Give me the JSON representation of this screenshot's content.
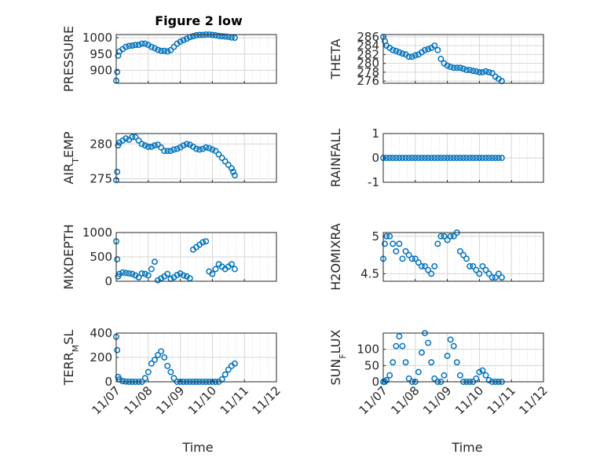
{
  "figure": {
    "title": "Figure 2 low",
    "x_axis_label": "Time",
    "x_tick_labels": [
      "11/07",
      "11/08",
      "11/09",
      "11/10",
      "11/11",
      "11/12"
    ],
    "marker_color": "#0072bd",
    "grid_color": "#d6d6d6",
    "axis_color": "#262626"
  },
  "chart_data": [
    {
      "type": "scatter",
      "title": "Figure 2 low",
      "ylabel": "PRESSURE",
      "xlabel": "",
      "xlim": [
        0,
        5
      ],
      "ylim": [
        860,
        1010
      ],
      "yticks": [
        900,
        950,
        1000
      ],
      "grid": true,
      "x": [
        0,
        0.03,
        0.06,
        0.1,
        0.2,
        0.3,
        0.4,
        0.5,
        0.6,
        0.7,
        0.8,
        0.9,
        1,
        1.1,
        1.2,
        1.3,
        1.4,
        1.5,
        1.6,
        1.7,
        1.8,
        1.9,
        2,
        2.1,
        2.2,
        2.3,
        2.4,
        2.5,
        2.6,
        2.7,
        2.8,
        2.9,
        3,
        3.1,
        3.2,
        3.3,
        3.4,
        3.5,
        3.6,
        3.7
      ],
      "y": [
        868,
        895,
        945,
        958,
        965,
        972,
        975,
        976,
        978,
        978,
        982,
        982,
        978,
        972,
        968,
        963,
        960,
        960,
        958,
        962,
        972,
        982,
        988,
        993,
        997,
        1002,
        1005,
        1008,
        1009,
        1009,
        1010,
        1010,
        1009,
        1008,
        1006,
        1005,
        1004,
        1003,
        1001,
        1000
      ]
    },
    {
      "type": "scatter",
      "ylabel": "THETA",
      "xlabel": "",
      "xlim": [
        0,
        5
      ],
      "ylim": [
        275.5,
        286.5
      ],
      "yticks": [
        276,
        278,
        280,
        282,
        284,
        286
      ],
      "grid": true,
      "x": [
        0,
        0.05,
        0.1,
        0.2,
        0.3,
        0.4,
        0.5,
        0.6,
        0.7,
        0.8,
        0.9,
        1,
        1.1,
        1.2,
        1.3,
        1.4,
        1.5,
        1.6,
        1.7,
        1.8,
        1.9,
        2,
        2.1,
        2.2,
        2.3,
        2.4,
        2.5,
        2.6,
        2.7,
        2.8,
        2.9,
        3,
        3.1,
        3.2,
        3.3,
        3.4,
        3.5,
        3.6,
        3.7
      ],
      "y": [
        286,
        285,
        284,
        283.5,
        283,
        282.8,
        282.5,
        282.2,
        282,
        281.5,
        281.5,
        281.8,
        282,
        282.5,
        283,
        283.2,
        283.5,
        284,
        283,
        281,
        280,
        279.5,
        279.2,
        279,
        279,
        279,
        278.8,
        278.5,
        278.5,
        278.3,
        278.2,
        278,
        278,
        278.2,
        278,
        277.8,
        277,
        276.5,
        276
      ]
    },
    {
      "type": "scatter",
      "ylabel": "AIR_TEMP",
      "xlabel": "",
      "xlim": [
        0,
        5
      ],
      "ylim": [
        274.5,
        281.5
      ],
      "yticks": [
        275,
        280
      ],
      "grid": true,
      "x": [
        0,
        0.03,
        0.06,
        0.1,
        0.2,
        0.3,
        0.4,
        0.5,
        0.6,
        0.7,
        0.8,
        0.9,
        1,
        1.1,
        1.2,
        1.3,
        1.4,
        1.5,
        1.6,
        1.7,
        1.8,
        1.9,
        2,
        2.1,
        2.2,
        2.3,
        2.4,
        2.5,
        2.6,
        2.7,
        2.8,
        2.9,
        3,
        3.1,
        3.2,
        3.3,
        3.4,
        3.5,
        3.6,
        3.65,
        3.7
      ],
      "y": [
        274.8,
        276,
        279.8,
        280.2,
        280.5,
        280.8,
        280.6,
        281,
        281,
        280.5,
        280,
        279.8,
        279.6,
        279.6,
        279.8,
        279.9,
        279.5,
        279,
        279,
        279,
        279.2,
        279.3,
        279.5,
        279.8,
        280,
        279.9,
        279.6,
        279.3,
        279.2,
        279.3,
        279.5,
        279.4,
        279.2,
        279,
        278.5,
        278,
        277.5,
        277,
        276.5,
        276,
        275.5
      ]
    },
    {
      "type": "scatter",
      "ylabel": "RAINFALL",
      "xlabel": "",
      "xlim": [
        0,
        5
      ],
      "ylim": [
        -1,
        1
      ],
      "yticks": [
        -1,
        0,
        1
      ],
      "grid": true,
      "x": [
        0,
        0.1,
        0.2,
        0.3,
        0.4,
        0.5,
        0.6,
        0.7,
        0.8,
        0.9,
        1,
        1.1,
        1.2,
        1.3,
        1.4,
        1.5,
        1.6,
        1.7,
        1.8,
        1.9,
        2,
        2.1,
        2.2,
        2.3,
        2.4,
        2.5,
        2.6,
        2.7,
        2.8,
        2.9,
        3,
        3.1,
        3.2,
        3.3,
        3.4,
        3.5,
        3.6,
        3.7
      ],
      "y": [
        0,
        0,
        0,
        0,
        0,
        0,
        0,
        0,
        0,
        0,
        0,
        0,
        0,
        0,
        0,
        0,
        0,
        0,
        0,
        0,
        0,
        0,
        0,
        0,
        0,
        0,
        0,
        0,
        0,
        0,
        0,
        0,
        0,
        0,
        0,
        0,
        0,
        0
      ]
    },
    {
      "type": "scatter",
      "ylabel": "MIXDEPTH",
      "xlabel": "",
      "xlim": [
        0,
        5
      ],
      "ylim": [
        0,
        1000
      ],
      "yticks": [
        0,
        500,
        1000
      ],
      "grid": true,
      "x": [
        0,
        0.03,
        0.06,
        0.1,
        0.2,
        0.3,
        0.4,
        0.5,
        0.6,
        0.7,
        0.8,
        0.9,
        1,
        1.1,
        1.2,
        1.3,
        1.4,
        1.5,
        1.6,
        1.7,
        1.8,
        1.9,
        2,
        2.1,
        2.2,
        2.3,
        2.4,
        2.5,
        2.6,
        2.7,
        2.8,
        2.9,
        3,
        3.1,
        3.2,
        3.3,
        3.4,
        3.5,
        3.6,
        3.7
      ],
      "y": [
        820,
        450,
        100,
        150,
        180,
        170,
        160,
        150,
        120,
        80,
        160,
        150,
        120,
        250,
        400,
        20,
        60,
        100,
        150,
        50,
        80,
        130,
        160,
        120,
        100,
        60,
        650,
        700,
        750,
        800,
        820,
        200,
        150,
        250,
        350,
        300,
        250,
        300,
        350,
        250
      ]
    },
    {
      "type": "scatter",
      "ylabel": "H2OMIXRA",
      "xlabel": "",
      "xlim": [
        0,
        5
      ],
      "ylim": [
        4.4,
        5.05
      ],
      "yticks": [
        4.5,
        5
      ],
      "grid": true,
      "x": [
        0,
        0.05,
        0.1,
        0.2,
        0.3,
        0.4,
        0.5,
        0.6,
        0.7,
        0.8,
        0.9,
        1,
        1.1,
        1.2,
        1.3,
        1.4,
        1.5,
        1.6,
        1.7,
        1.8,
        1.9,
        2,
        2.1,
        2.2,
        2.3,
        2.4,
        2.5,
        2.6,
        2.7,
        2.8,
        2.9,
        3,
        3.1,
        3.2,
        3.3,
        3.4,
        3.5,
        3.6,
        3.7
      ],
      "y": [
        4.7,
        4.9,
        5,
        5,
        4.9,
        4.8,
        4.9,
        4.7,
        4.8,
        4.75,
        4.7,
        4.7,
        4.65,
        4.6,
        4.6,
        4.55,
        4.5,
        4.6,
        4.9,
        5,
        5,
        4.95,
        5,
        5,
        5.05,
        4.8,
        4.75,
        4.7,
        4.6,
        4.6,
        4.55,
        4.5,
        4.6,
        4.55,
        4.5,
        4.45,
        4.45,
        4.5,
        4.45
      ]
    },
    {
      "type": "scatter",
      "ylabel": "TERR_MSL",
      "xlabel": "",
      "xlim": [
        0,
        5
      ],
      "ylim": [
        0,
        400
      ],
      "yticks": [
        0,
        200,
        400
      ],
      "grid": true,
      "x": [
        0,
        0.03,
        0.06,
        0.1,
        0.2,
        0.3,
        0.4,
        0.5,
        0.6,
        0.7,
        0.8,
        0.9,
        1,
        1.1,
        1.2,
        1.3,
        1.4,
        1.5,
        1.6,
        1.7,
        1.8,
        1.9,
        2,
        2.1,
        2.2,
        2.3,
        2.4,
        2.5,
        2.6,
        2.7,
        2.8,
        2.9,
        3,
        3.1,
        3.2,
        3.3,
        3.4,
        3.5,
        3.6,
        3.7
      ],
      "y": [
        370,
        260,
        40,
        20,
        5,
        2,
        0,
        0,
        0,
        0,
        0,
        30,
        80,
        150,
        180,
        220,
        250,
        200,
        130,
        80,
        30,
        0,
        0,
        0,
        0,
        0,
        0,
        0,
        0,
        0,
        0,
        0,
        0,
        0,
        0,
        20,
        60,
        100,
        130,
        150
      ]
    },
    {
      "type": "scatter",
      "ylabel": "SUN_FLUX",
      "xlabel": "",
      "xlim": [
        0,
        5
      ],
      "ylim": [
        0,
        150
      ],
      "yticks": [
        0,
        50,
        100
      ],
      "grid": true,
      "x": [
        0,
        0.05,
        0.1,
        0.2,
        0.3,
        0.4,
        0.5,
        0.6,
        0.7,
        0.8,
        0.9,
        1,
        1.1,
        1.2,
        1.3,
        1.4,
        1.5,
        1.6,
        1.7,
        1.8,
        1.9,
        2,
        2.1,
        2.2,
        2.3,
        2.4,
        2.5,
        2.6,
        2.7,
        2.8,
        2.9,
        3,
        3.1,
        3.2,
        3.3,
        3.4,
        3.5,
        3.6,
        3.7
      ],
      "y": [
        0,
        0,
        5,
        20,
        60,
        110,
        140,
        110,
        60,
        10,
        0,
        0,
        30,
        90,
        150,
        120,
        60,
        10,
        0,
        0,
        20,
        80,
        130,
        110,
        60,
        20,
        0,
        0,
        0,
        0,
        10,
        30,
        35,
        20,
        5,
        0,
        0,
        0,
        0
      ]
    }
  ]
}
